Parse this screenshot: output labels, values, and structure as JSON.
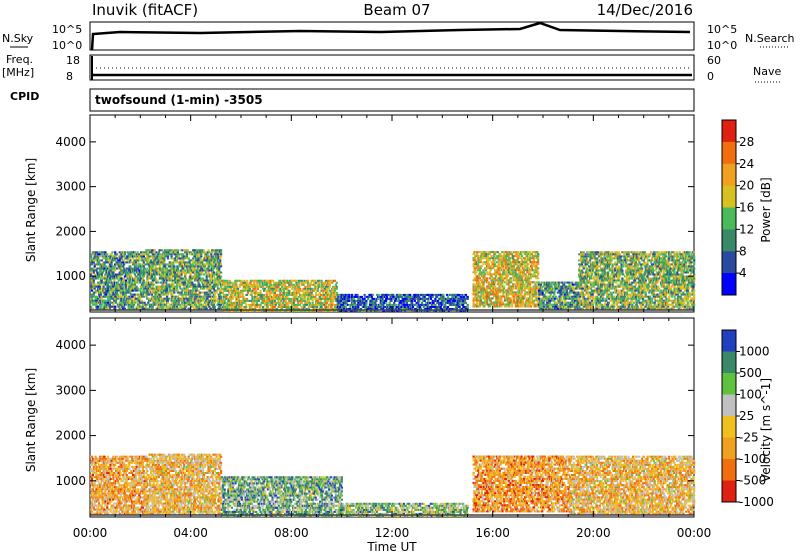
{
  "header": {
    "station": "Inuvik (fitACF)",
    "beam": "Beam 07",
    "date": "14/Dec/2016"
  },
  "strip_labels": {
    "nsky": "N.Sky",
    "nsearch": "N.Search",
    "freq_line1": "Freq.",
    "freq_line2": "[MHz]",
    "nave": "Nave",
    "cpid": "CPID",
    "nsky_ticks": [
      "10^5",
      "10^0"
    ],
    "freq_ticks": [
      "18",
      "8"
    ],
    "nave_ticks": [
      "60",
      "0"
    ]
  },
  "cpid": {
    "text": "twofsound (1-min) -3505"
  },
  "chart_data": [
    {
      "type": "heatmap",
      "name": "power",
      "ylabel": "Slant Range [km]",
      "xlabel": "",
      "xlim": [
        0,
        24
      ],
      "ylim": [
        200,
        4600
      ],
      "x_ticks": [
        "00:00",
        "04:00",
        "08:00",
        "12:00",
        "16:00",
        "20:00",
        "00:00"
      ],
      "y_ticks": [
        "1000",
        "2000",
        "3000",
        "4000"
      ],
      "colorbar": {
        "label": "Power [dB]",
        "ticks": [
          "4",
          "8",
          "12",
          "16",
          "20",
          "24",
          "28"
        ],
        "colors": [
          "#0000ff",
          "#2a4aa0",
          "#3a8a6a",
          "#4aba5a",
          "#d8c020",
          "#f0a020",
          "#f07010",
          "#e02010"
        ]
      },
      "regions": [
        {
          "t0": 0.0,
          "t1": 2.2,
          "r0": 250,
          "r1": 1550,
          "level": 0.35
        },
        {
          "t0": 2.2,
          "t1": 5.2,
          "r0": 250,
          "r1": 1580,
          "level": 0.4
        },
        {
          "t0": 5.2,
          "t1": 9.8,
          "r0": 200,
          "r1": 900,
          "level": 0.55
        },
        {
          "t0": 9.8,
          "t1": 15.0,
          "r0": 200,
          "r1": 600,
          "level": 0.2
        },
        {
          "t0": 15.2,
          "t1": 17.8,
          "r0": 300,
          "r1": 1550,
          "level": 0.6
        },
        {
          "t0": 17.8,
          "t1": 19.4,
          "r0": 250,
          "r1": 900,
          "level": 0.35
        },
        {
          "t0": 19.4,
          "t1": 24.0,
          "r0": 250,
          "r1": 1550,
          "level": 0.45
        }
      ]
    },
    {
      "type": "heatmap",
      "name": "velocity",
      "ylabel": "Slant Range [km]",
      "xlabel": "Time UT",
      "xlim": [
        0,
        24
      ],
      "ylim": [
        200,
        4600
      ],
      "x_ticks": [
        "00:00",
        "04:00",
        "08:00",
        "12:00",
        "16:00",
        "20:00",
        "00:00"
      ],
      "y_ticks": [
        "1000",
        "2000",
        "3000",
        "4000"
      ],
      "colorbar": {
        "label": "Velocity [m s^-1]",
        "ticks": [
          "1000",
          "500",
          "100",
          "25",
          "-25",
          "-100",
          "-500",
          "-1000"
        ],
        "colors": [
          "#2040c0",
          "#3a8a6a",
          "#60c040",
          "#c0c0c0",
          "#f0c020",
          "#f0a020",
          "#f07010",
          "#e02010"
        ]
      },
      "regions": [
        {
          "t0": 0.0,
          "t1": 2.2,
          "r0": 250,
          "r1": 1550,
          "level": 0.65
        },
        {
          "t0": 2.2,
          "t1": 5.2,
          "r0": 250,
          "r1": 1580,
          "level": 0.6
        },
        {
          "t0": 5.2,
          "t1": 10.0,
          "r0": 200,
          "r1": 1100,
          "level": 0.3
        },
        {
          "t0": 10.0,
          "t1": 15.0,
          "r0": 200,
          "r1": 500,
          "level": 0.35
        },
        {
          "t0": 15.2,
          "t1": 19.0,
          "r0": 300,
          "r1": 1550,
          "level": 0.7
        },
        {
          "t0": 19.0,
          "t1": 24.0,
          "r0": 250,
          "r1": 1550,
          "level": 0.6
        }
      ]
    }
  ]
}
